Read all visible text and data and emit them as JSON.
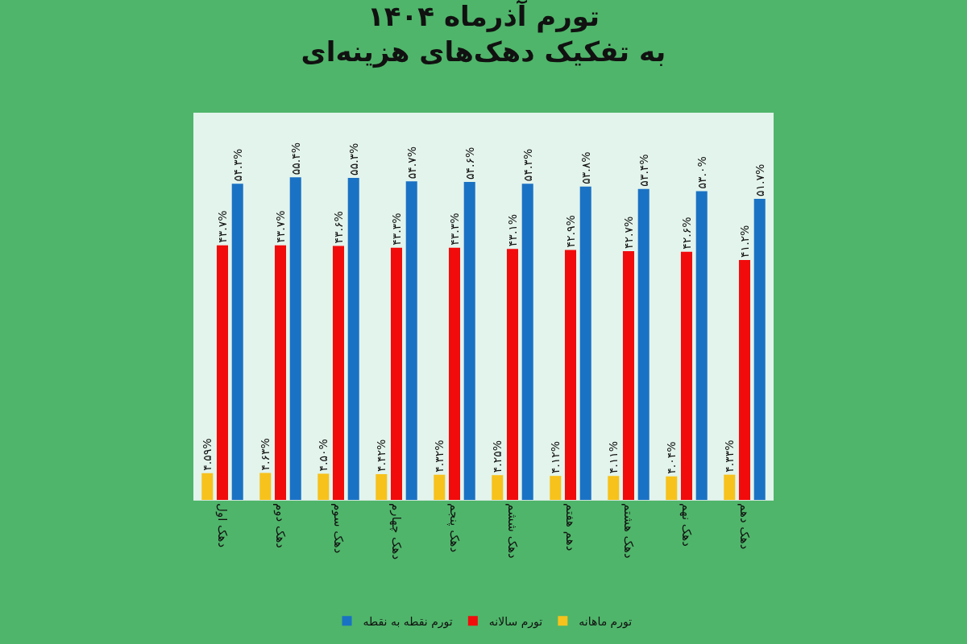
{
  "chart_data": {
    "type": "bar",
    "title": "تورم آذرماه ۱۴۰۴",
    "subtitle": "به تفکیک دهک‌های هزینه‌ای",
    "categories": [
      "دهک اول",
      "دهک دوم",
      "دهک سوم",
      "دهک چهارم",
      "دهک پنجم",
      "دهک ششم",
      "دهم هفتم",
      "دهک هشتم",
      "دهک نهم",
      "دهک دهم"
    ],
    "series": [
      {
        "name": "تورم ماهانه",
        "color": "#f7c21b",
        "values": [
          4.59,
          4.63,
          4.5,
          4.42,
          4.32,
          4.25,
          4.12,
          4.11,
          4.04,
          4.33
        ],
        "value_labels": [
          "۴.۵۹%",
          "۴.۶۳%",
          "۴.۵۰%",
          "۴.۴۲%",
          "۴.۳۲%",
          "۴.۲۵%",
          "۴.۱۲%",
          "۴.۱۱%",
          "۴.۰۴%",
          "۴.۳۳%"
        ]
      },
      {
        "name": "تورم سالانه",
        "color": "#f20b0b",
        "values": [
          43.7,
          43.7,
          43.6,
          43.3,
          43.3,
          43.1,
          42.9,
          42.7,
          42.6,
          41.2
        ],
        "value_labels": [
          "۴۳.۷%",
          "۴۳.۷%",
          "۴۳.۶%",
          "۴۳.۳%",
          "۴۳.۳%",
          "۴۳.۱%",
          "۴۲.۹%",
          "۴۲.۷%",
          "۴۲.۶%",
          "۴۱.۲%"
        ]
      },
      {
        "name": "تورم نقطه به نقطه",
        "color": "#1a72c4",
        "values": [
          54.3,
          55.4,
          55.3,
          54.7,
          54.6,
          54.3,
          53.8,
          53.4,
          53.0,
          51.7
        ],
        "value_labels": [
          "۵۴.۳%",
          "۵۵.۴%",
          "۵۵.۳%",
          "۵۴.۷%",
          "۵۴.۶%",
          "۵۴.۳%",
          "۵۳.۸%",
          "۵۳.۴%",
          "۵۳.۰%",
          "۵۱.۷%"
        ]
      }
    ],
    "legend": "bottom"
  }
}
